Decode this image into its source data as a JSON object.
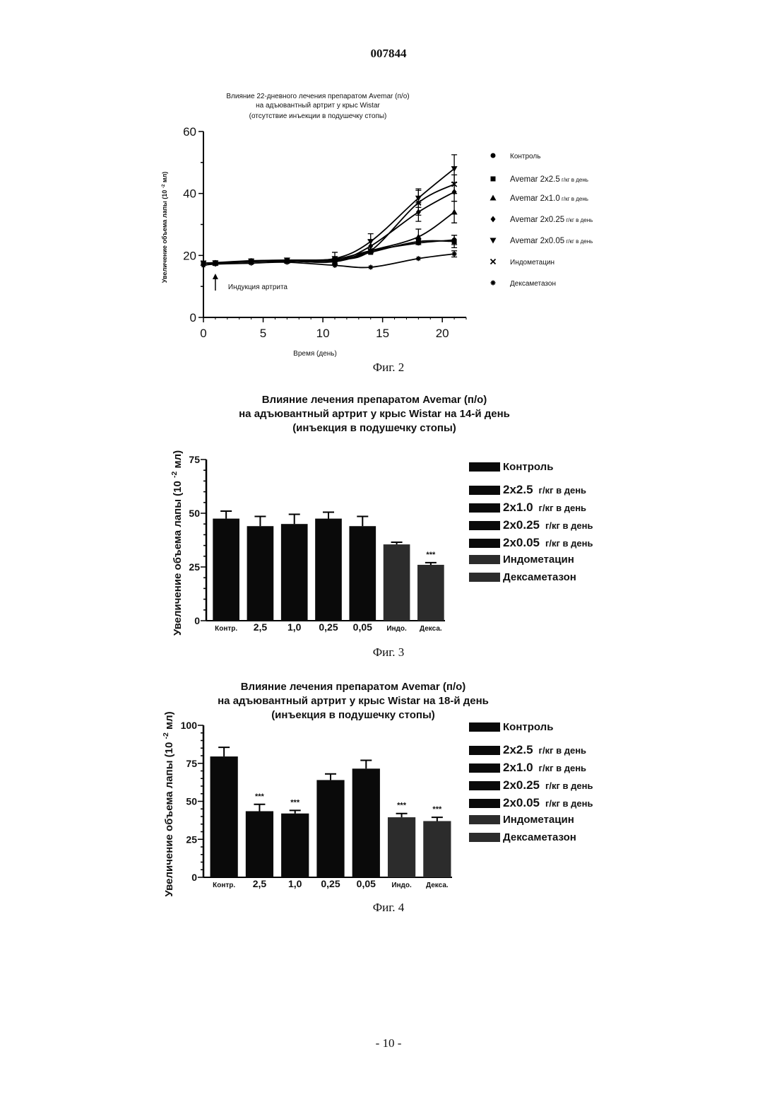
{
  "document": {
    "number": "007844",
    "page": "- 10 -"
  },
  "chart_data": [
    {
      "type": "line",
      "caption": "Фиг. 2",
      "title": [
        "Влияние 22-дневного лечения препаратом Avemar (п/о)",
        "на адъювантный артрит у крыс Wistar",
        "(отсутствие инъекции в подушечку стопы)"
      ],
      "xlabel": "Время (день)",
      "ylabel": "Увеличение объема лапы (10 -2 мл)",
      "xlim": [
        0,
        22
      ],
      "ylim": [
        0,
        60
      ],
      "xticks": [
        0,
        5,
        10,
        15,
        20
      ],
      "yticks": [
        0,
        20,
        40,
        60
      ],
      "annotation": "Индукция артрита",
      "annotation_x": 1,
      "legend_position": "right",
      "x": [
        0,
        1,
        4,
        7,
        11,
        14,
        18,
        21
      ],
      "series": [
        {
          "name": "Контроль",
          "marker": "circle",
          "values": [
            17.5,
            17.7,
            18.3,
            18.5,
            18.8,
            21.5,
            24,
            25
          ],
          "err": [
            0,
            0,
            0,
            0,
            0,
            0,
            0,
            1.5
          ]
        },
        {
          "name": "Avemar 2x2.5 г/кг в день",
          "marker": "square",
          "values": [
            17.5,
            17.6,
            18.2,
            18.2,
            18,
            21,
            24.5,
            24.5
          ],
          "err": [
            0,
            0,
            0,
            0,
            0,
            0,
            0,
            2
          ]
        },
        {
          "name": "Avemar 2x1.0 г/кг в день",
          "marker": "triangle-up",
          "values": [
            17.5,
            17.5,
            18,
            18.2,
            18,
            21.5,
            26,
            34
          ],
          "err": [
            0,
            0,
            0,
            0,
            0,
            0,
            2.5,
            3.5
          ]
        },
        {
          "name": "Avemar 2x0.25 г/кг в день",
          "marker": "diamond",
          "values": [
            17.5,
            17.5,
            18,
            18.2,
            18.2,
            23,
            34,
            40.5
          ],
          "err": [
            0,
            0,
            0,
            0,
            0,
            2,
            3,
            3
          ]
        },
        {
          "name": "Avemar 2x0.05 г/кг в день",
          "marker": "triangle-down",
          "values": [
            17.5,
            17.6,
            18.2,
            18.5,
            19,
            24.5,
            38.5,
            48
          ],
          "err": [
            0,
            0,
            0,
            0,
            2,
            2.5,
            3,
            4.5
          ]
        },
        {
          "name": "Индометацин",
          "marker": "x",
          "values": [
            17.5,
            17.5,
            18,
            18.3,
            18.5,
            21.5,
            37,
            43
          ],
          "err": [
            0,
            0,
            0,
            0,
            0,
            0,
            4,
            3
          ]
        },
        {
          "name": "Дексаметазон",
          "marker": "star",
          "values": [
            16.8,
            17.2,
            17.5,
            17.8,
            16.8,
            16.2,
            19,
            20.5
          ],
          "err": [
            0,
            0,
            0,
            0,
            0,
            0,
            0,
            1
          ]
        }
      ]
    },
    {
      "type": "bar",
      "caption": "Фиг. 3",
      "title": [
        "Влияние лечения препаратом Avemar (п/о)",
        "на адъювантный артрит у крыс Wistar на 14-й день",
        "(инъекция в подушечку стопы)"
      ],
      "ylabel": "Увеличение объема лапы (10 -2 мл)",
      "ylim": [
        0,
        75
      ],
      "yticks": [
        0,
        25,
        50,
        75
      ],
      "categories": [
        "Контр.",
        "2,5",
        "1,0",
        "0,25",
        "0,05",
        "Индо.",
        "Декса."
      ],
      "values": [
        47.5,
        44,
        45,
        47.5,
        44,
        35.5,
        26
      ],
      "err": [
        3.5,
        4.5,
        4.5,
        3,
        4.5,
        1,
        1
      ],
      "significance": [
        "",
        "",
        "",
        "",
        "",
        "",
        "***"
      ],
      "legend_position": "right",
      "legend": [
        {
          "a": "Контроль",
          "b": ""
        },
        {
          "a": "2x2.5",
          "b": "г/кг в день"
        },
        {
          "a": "2x1.0",
          "b": "г/кг в день"
        },
        {
          "a": "2x0.25",
          "b": "г/кг в день"
        },
        {
          "a": "2x0.05",
          "b": "г/кг в день"
        },
        {
          "a": "Индометацин",
          "b": ""
        },
        {
          "a": "Дексаметазон",
          "b": ""
        }
      ]
    },
    {
      "type": "bar",
      "caption": "Фиг. 4",
      "title": [
        "Влияние лечения препаратом Avemar (п/о)",
        "на адъювантный артрит у крыс Wistar на 18-й день",
        "(инъекция в подушечку стопы)"
      ],
      "ylabel": "Увеличение объема лапы (10 -2 мл)",
      "ylim": [
        0,
        100
      ],
      "yticks": [
        0,
        25,
        50,
        75,
        100
      ],
      "categories": [
        "Контр.",
        "2,5",
        "1,0",
        "0,25",
        "0,05",
        "Индо.",
        "Декса."
      ],
      "values": [
        79.5,
        43.5,
        42,
        64,
        71.5,
        39.5,
        37
      ],
      "err": [
        6,
        4.5,
        2,
        4,
        5.5,
        2.5,
        2.5
      ],
      "significance": [
        "",
        "***",
        "***",
        "",
        "",
        "***",
        "***"
      ],
      "legend_position": "right",
      "legend": [
        {
          "a": "Контроль",
          "b": ""
        },
        {
          "a": "2x2.5",
          "b": "г/кг в день"
        },
        {
          "a": "2x1.0",
          "b": "г/кг в день"
        },
        {
          "a": "2x0.25",
          "b": "г/кг в день"
        },
        {
          "a": "2x0.05",
          "b": "г/кг в день"
        },
        {
          "a": "Индометацин",
          "b": ""
        },
        {
          "a": "Дексаметазон",
          "b": ""
        }
      ]
    }
  ]
}
